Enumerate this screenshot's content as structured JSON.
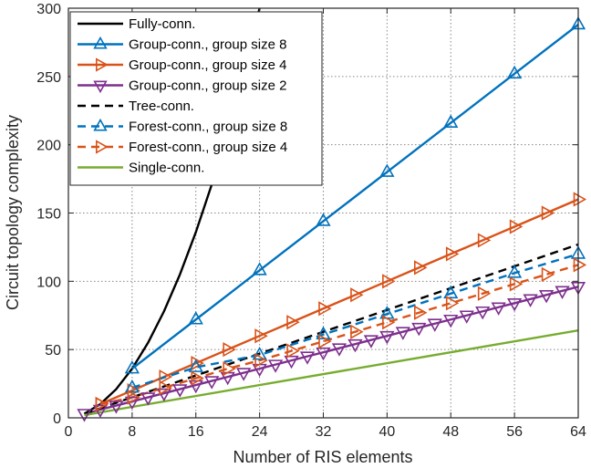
{
  "chart_data": {
    "type": "line",
    "xlabel": "Number of RIS elements",
    "ylabel": "Circuit topology complexity",
    "xlim": [
      0,
      64
    ],
    "ylim": [
      0,
      300
    ],
    "xticks": [
      0,
      8,
      16,
      24,
      32,
      40,
      48,
      56,
      64
    ],
    "yticks": [
      0,
      50,
      100,
      150,
      200,
      250,
      300
    ],
    "grid": true,
    "legend_position": "top-left",
    "series": [
      {
        "name": "Fully-conn.",
        "color": "#000000",
        "style": "solid",
        "marker": "none",
        "x": [
          2,
          4,
          6,
          8,
          10,
          12,
          14,
          16,
          18,
          20,
          22,
          24
        ],
        "y": [
          3,
          10,
          21,
          36,
          55,
          78,
          105,
          136,
          171,
          210,
          253,
          300
        ]
      },
      {
        "name": "Group-conn., group size 8",
        "color": "#0072BD",
        "style": "solid",
        "marker": "triangle-up",
        "x": [
          8,
          16,
          24,
          32,
          40,
          48,
          56,
          64
        ],
        "y": [
          36,
          72,
          108,
          144,
          180,
          216,
          252,
          288
        ]
      },
      {
        "name": "Group-conn., group size 4",
        "color": "#D95319",
        "style": "solid",
        "marker": "triangle-right",
        "x": [
          4,
          8,
          12,
          16,
          20,
          24,
          28,
          32,
          36,
          40,
          44,
          48,
          52,
          56,
          60,
          64
        ],
        "y": [
          10,
          20,
          30,
          40,
          50,
          60,
          70,
          80,
          90,
          100,
          110,
          120,
          130,
          140,
          150,
          160
        ]
      },
      {
        "name": "Group-conn., group size 2",
        "color": "#7E2F8E",
        "style": "solid",
        "marker": "triangle-down",
        "x": [
          2,
          4,
          6,
          8,
          10,
          12,
          14,
          16,
          18,
          20,
          22,
          24,
          26,
          28,
          30,
          32,
          34,
          36,
          38,
          40,
          42,
          44,
          46,
          48,
          50,
          52,
          54,
          56,
          58,
          60,
          62,
          64
        ],
        "y": [
          3,
          6,
          9,
          12,
          15,
          18,
          21,
          24,
          27,
          30,
          33,
          36,
          39,
          42,
          45,
          48,
          51,
          54,
          57,
          60,
          63,
          66,
          69,
          72,
          75,
          78,
          81,
          84,
          87,
          90,
          93,
          96
        ]
      },
      {
        "name": "Tree-conn.",
        "color": "#000000",
        "style": "dashed",
        "marker": "none",
        "x": [
          2,
          64
        ],
        "y": [
          3,
          127
        ]
      },
      {
        "name": "Forest-conn., group size 8",
        "color": "#0072BD",
        "style": "dashed",
        "marker": "triangle-up",
        "x": [
          8,
          16,
          24,
          32,
          40,
          48,
          56,
          64
        ],
        "y": [
          22,
          37,
          46,
          61,
          76,
          91,
          106,
          120
        ]
      },
      {
        "name": "Forest-conn., group size 4",
        "color": "#D95319",
        "style": "dashed",
        "marker": "triangle-right",
        "x": [
          4,
          8,
          12,
          16,
          20,
          24,
          28,
          32,
          36,
          40,
          44,
          48,
          52,
          56,
          60,
          64
        ],
        "y": [
          10,
          15,
          22,
          29,
          36,
          42,
          49,
          56,
          63,
          70,
          77,
          84,
          91,
          98,
          105,
          112
        ]
      },
      {
        "name": "Single-conn.",
        "color": "#77AC30",
        "style": "solid",
        "marker": "none",
        "x": [
          2,
          64
        ],
        "y": [
          2,
          64
        ]
      }
    ]
  }
}
